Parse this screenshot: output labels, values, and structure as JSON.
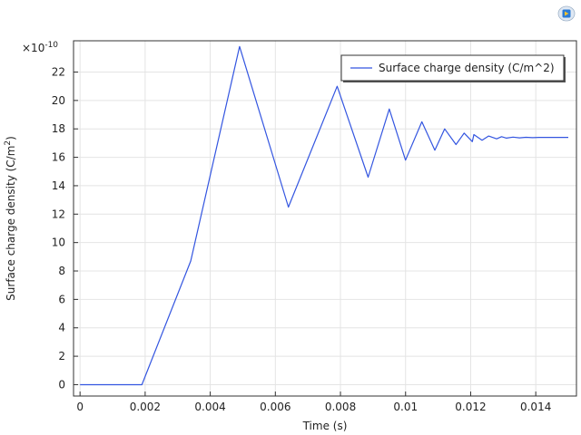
{
  "icons": {
    "corner": "comsol-graphics-logo-icon"
  },
  "colors": {
    "series": "#3355e0",
    "grid": "#e4e4e4",
    "axis": "#333333"
  },
  "chart_data": {
    "type": "line",
    "title": "",
    "xlabel": "Time (s)",
    "ylabel_base": "Surface charge density (C/m",
    "ylabel_sup": "2",
    "ylabel_tail": ")",
    "y_multiplier_base": "×10",
    "y_multiplier_exp": "-10",
    "xlim": [
      -0.0002,
      0.01525
    ],
    "ylim": [
      -0.8,
      24.2
    ],
    "grid": true,
    "legend_position": "top-right",
    "xticks": [
      0,
      0.002,
      0.004,
      0.006,
      0.008,
      0.01,
      0.012,
      0.014
    ],
    "xtick_labels": [
      "0",
      "0.002",
      "0.004",
      "0.006",
      "0.008",
      "0.01",
      "0.012",
      "0.014"
    ],
    "yticks": [
      0,
      2,
      4,
      6,
      8,
      10,
      12,
      14,
      16,
      18,
      20,
      22
    ],
    "ytick_labels": [
      "0",
      "2",
      "4",
      "6",
      "8",
      "10",
      "12",
      "14",
      "16",
      "18",
      "20",
      "22"
    ],
    "series": [
      {
        "name": "Surface charge density (C/m^2)",
        "x": [
          0,
          0.0019,
          0.0034,
          0.0049,
          0.0064,
          0.0079,
          0.00885,
          0.0095,
          0.01,
          0.0105,
          0.0109,
          0.0112,
          0.01155,
          0.0118,
          0.01205,
          0.0121,
          0.01235,
          0.01255,
          0.0128,
          0.01295,
          0.0131,
          0.0133,
          0.0135,
          0.0137,
          0.0139,
          0.0141,
          0.015
        ],
        "y": [
          0,
          0,
          8.7,
          23.8,
          12.5,
          21.0,
          14.6,
          19.4,
          15.8,
          18.5,
          16.5,
          18.0,
          16.9,
          17.7,
          17.1,
          17.6,
          17.2,
          17.5,
          17.3,
          17.45,
          17.35,
          17.42,
          17.37,
          17.41,
          17.38,
          17.4,
          17.4
        ]
      }
    ]
  }
}
